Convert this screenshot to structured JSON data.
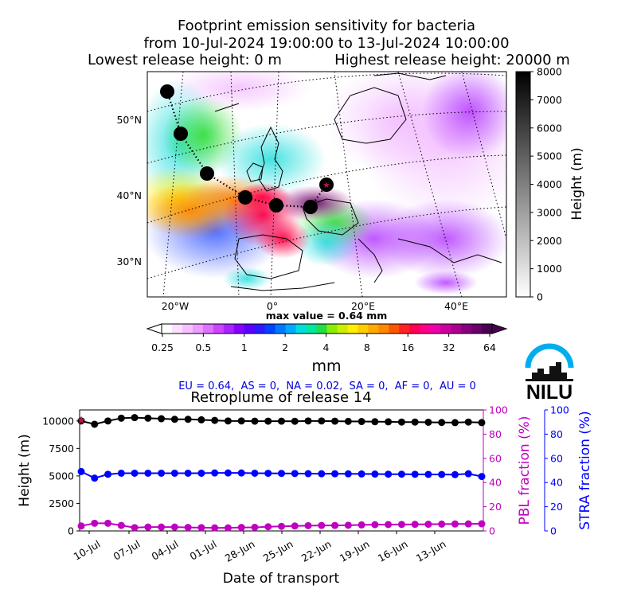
{
  "header": {
    "title_line1": "Footprint emission sensitivity for bacteria",
    "title_line2": "from 10-Jul-2024 19:00:00 to 13-Jul-2024 10:00:00",
    "lowest_release": "Lowest release height: 0 m",
    "highest_release": "Highest release height: 20000 m"
  },
  "map": {
    "lat_labels": [
      "50°N",
      "40°N",
      "30°N"
    ],
    "lon_labels": [
      "20°W",
      "0°",
      "20°E",
      "40°E"
    ],
    "max_value_label": "max value = 0.64 mm",
    "height_colorbar": {
      "label": "Height (m)",
      "ticks": [
        "8000",
        "7000",
        "6000",
        "5000",
        "4000",
        "3000",
        "2000",
        "1000",
        "0"
      ]
    },
    "sensitivity_colorbar": {
      "unit": "mm",
      "ticks": [
        "0.25",
        "0.5",
        "1",
        "2",
        "4",
        "8",
        "16",
        "32",
        "64"
      ]
    }
  },
  "regions_summary": "EU = 0.64,  AS = 0,  NA = 0.02,  SA = 0,  AF = 0,  AU = 0",
  "logo": {
    "text": "NILU",
    "color": "#00aeef"
  },
  "chart_data": {
    "type": "line",
    "title": "Retroplume of release 14",
    "xlabel": "Date of transport",
    "ylabel": "Height (m)",
    "ylabel_right1": "PBL fraction (%)",
    "ylabel_right2": "STRA fraction (%)",
    "x_ticks": [
      "10-Jul",
      "07-Jul",
      "04-Jul",
      "01-Jul",
      "28-Jun",
      "25-Jun",
      "22-Jun",
      "19-Jun",
      "16-Jun",
      "13-Jun"
    ],
    "ylim_left": [
      0,
      11000
    ],
    "y_ticks_left": [
      "0",
      "2500",
      "5000",
      "7500",
      "10000"
    ],
    "ylim_right": [
      0,
      100
    ],
    "y_ticks_right": [
      "0",
      "20",
      "40",
      "60",
      "80",
      "100"
    ],
    "series": [
      {
        "axis": "left",
        "color": "#000000",
        "values": [
          10000,
          9700,
          10000,
          10250,
          10300,
          10250,
          10200,
          10150,
          10150,
          10100,
          10050,
          10000,
          10000,
          9980,
          9980,
          9980,
          9970,
          10000,
          10000,
          9980,
          9960,
          9950,
          9930,
          9920,
          9900,
          9900,
          9880,
          9860,
          9850,
          9900,
          9850
        ]
      },
      {
        "axis": "left",
        "color": "#0000ff",
        "values": [
          5400,
          4800,
          5150,
          5250,
          5250,
          5250,
          5250,
          5250,
          5250,
          5250,
          5270,
          5270,
          5270,
          5250,
          5240,
          5230,
          5220,
          5210,
          5200,
          5200,
          5190,
          5180,
          5170,
          5160,
          5160,
          5150,
          5140,
          5130,
          5120,
          5200,
          4950
        ]
      },
      {
        "axis": "left",
        "color": "#c000c0",
        "values": [
          450,
          700,
          700,
          500,
          300,
          350,
          350,
          350,
          320,
          300,
          280,
          280,
          320,
          330,
          380,
          420,
          450,
          480,
          500,
          500,
          520,
          550,
          570,
          580,
          590,
          600,
          610,
          620,
          630,
          640,
          650
        ]
      }
    ],
    "release_marker": {
      "x_index": 0,
      "value": 10100,
      "color": "#c0104f"
    }
  }
}
